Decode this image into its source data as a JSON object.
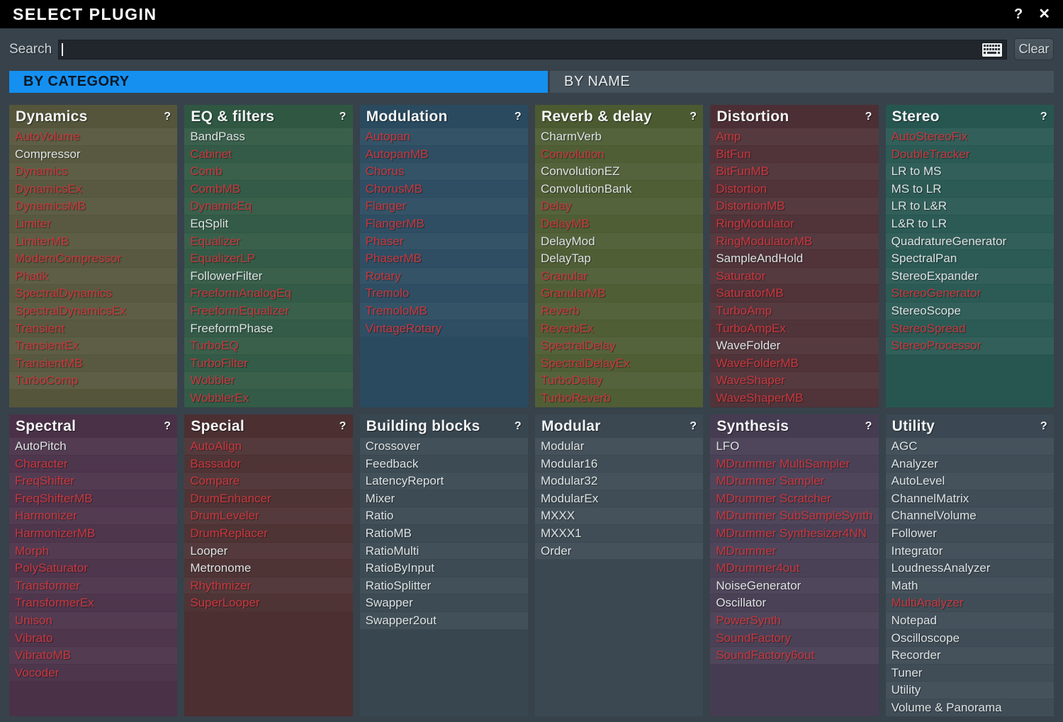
{
  "titlebar": {
    "title": "SELECT PLUGIN",
    "help_icon": "?",
    "close_icon": "✕"
  },
  "search": {
    "label": "Search",
    "value": "",
    "clear_label": "Clear"
  },
  "tabs": [
    {
      "label": "BY CATEGORY",
      "active": true
    },
    {
      "label": "BY NAME",
      "active": false
    }
  ],
  "panel_help_icon": "?",
  "colors": {
    "titlebar_bg": "#000000",
    "dialog_bg": "#37424b",
    "active_tab_blue": "#1590f0",
    "inactive_tab_gray": "#46525b",
    "red_item_text": "#c8383e",
    "normal_item_text": "#dde2e3"
  },
  "categories": [
    {
      "name": "Dynamics",
      "color": "#54553b",
      "items": [
        {
          "label": "AutoVolume",
          "red": true
        },
        {
          "label": "Compressor",
          "red": false
        },
        {
          "label": "Dynamics",
          "red": true
        },
        {
          "label": "DynamicsEx",
          "red": true
        },
        {
          "label": "DynamicsMB",
          "red": true
        },
        {
          "label": "Limiter",
          "red": true
        },
        {
          "label": "LimiterMB",
          "red": true
        },
        {
          "label": "ModernCompressor",
          "red": true
        },
        {
          "label": "Phatik",
          "red": true
        },
        {
          "label": "SpectralDynamics",
          "red": true
        },
        {
          "label": "SpectralDynamicsEx",
          "red": true
        },
        {
          "label": "Transient",
          "red": true
        },
        {
          "label": "TransientEx",
          "red": true
        },
        {
          "label": "TransientMB",
          "red": true
        },
        {
          "label": "TurboComp",
          "red": true
        }
      ]
    },
    {
      "name": "EQ & filters",
      "color": "#2f5742",
      "items": [
        {
          "label": "BandPass",
          "red": false
        },
        {
          "label": "Cabinet",
          "red": true
        },
        {
          "label": "Comb",
          "red": true
        },
        {
          "label": "CombMB",
          "red": true
        },
        {
          "label": "DynamicEq",
          "red": true
        },
        {
          "label": "EqSplit",
          "red": false
        },
        {
          "label": "Equalizer",
          "red": true
        },
        {
          "label": "EqualizerLP",
          "red": true
        },
        {
          "label": "FollowerFilter",
          "red": false
        },
        {
          "label": "FreeformAnalogEq",
          "red": true
        },
        {
          "label": "FreeformEqualizer",
          "red": true
        },
        {
          "label": "FreeformPhase",
          "red": false
        },
        {
          "label": "TurboEQ",
          "red": true
        },
        {
          "label": "TurboFilter",
          "red": true
        },
        {
          "label": "Wobbler",
          "red": true
        },
        {
          "label": "WobblerEx",
          "red": true
        }
      ]
    },
    {
      "name": "Modulation",
      "color": "#2a4a5f",
      "items": [
        {
          "label": "Autopan",
          "red": true
        },
        {
          "label": "AutopanMB",
          "red": true
        },
        {
          "label": "Chorus",
          "red": true
        },
        {
          "label": "ChorusMB",
          "red": true
        },
        {
          "label": "Flanger",
          "red": true
        },
        {
          "label": "FlangerMB",
          "red": true
        },
        {
          "label": "Phaser",
          "red": true
        },
        {
          "label": "PhaserMB",
          "red": true
        },
        {
          "label": "Rotary",
          "red": true
        },
        {
          "label": "Tremolo",
          "red": true
        },
        {
          "label": "TremoloMB",
          "red": true
        },
        {
          "label": "VintageRotary",
          "red": true
        }
      ]
    },
    {
      "name": "Reverb & delay",
      "color": "#4c5a31",
      "items": [
        {
          "label": "CharmVerb",
          "red": false
        },
        {
          "label": "Convolution",
          "red": true
        },
        {
          "label": "ConvolutionEZ",
          "red": false
        },
        {
          "label": "ConvolutionBank",
          "red": false
        },
        {
          "label": "Delay",
          "red": true
        },
        {
          "label": "DelayMB",
          "red": true
        },
        {
          "label": "DelayMod",
          "red": false
        },
        {
          "label": "DelayTap",
          "red": false
        },
        {
          "label": "Granular",
          "red": true
        },
        {
          "label": "GranularMB",
          "red": true
        },
        {
          "label": "Reverb",
          "red": true
        },
        {
          "label": "ReverbEx",
          "red": true
        },
        {
          "label": "SpectralDelay",
          "red": true
        },
        {
          "label": "SpectralDelayEx",
          "red": true
        },
        {
          "label": "TurboDelay",
          "red": true
        },
        {
          "label": "TurboReverb",
          "red": true
        }
      ]
    },
    {
      "name": "Distortion",
      "color": "#4c2f35",
      "items": [
        {
          "label": "Amp",
          "red": true
        },
        {
          "label": "BitFun",
          "red": true
        },
        {
          "label": "BitFunMB",
          "red": true
        },
        {
          "label": "Distortion",
          "red": true
        },
        {
          "label": "DistortionMB",
          "red": true
        },
        {
          "label": "RingModulator",
          "red": true
        },
        {
          "label": "RingModulatorMB",
          "red": true
        },
        {
          "label": "SampleAndHold",
          "red": false
        },
        {
          "label": "Saturator",
          "red": true
        },
        {
          "label": "SaturatorMB",
          "red": true
        },
        {
          "label": "TurboAmp",
          "red": true
        },
        {
          "label": "TurboAmpEx",
          "red": true
        },
        {
          "label": "WaveFolder",
          "red": false
        },
        {
          "label": "WaveFolderMB",
          "red": true
        },
        {
          "label": "WaveShaper",
          "red": true
        },
        {
          "label": "WaveShaperMB",
          "red": true
        }
      ]
    },
    {
      "name": "Stereo",
      "color": "#275651",
      "items": [
        {
          "label": "AutoStereoFix",
          "red": true
        },
        {
          "label": "DoubleTracker",
          "red": true
        },
        {
          "label": "LR to MS",
          "red": false
        },
        {
          "label": "MS to LR",
          "red": false
        },
        {
          "label": "LR to L&R",
          "red": false
        },
        {
          "label": "L&R to LR",
          "red": false
        },
        {
          "label": "QuadratureGenerator",
          "red": false
        },
        {
          "label": "SpectralPan",
          "red": false
        },
        {
          "label": "StereoExpander",
          "red": false
        },
        {
          "label": "StereoGenerator",
          "red": true
        },
        {
          "label": "StereoScope",
          "red": false
        },
        {
          "label": "StereoSpread",
          "red": true
        },
        {
          "label": "StereoProcessor",
          "red": true
        }
      ]
    },
    {
      "name": "Spectral",
      "color": "#4a3148",
      "items": [
        {
          "label": "AutoPitch",
          "red": false
        },
        {
          "label": "Character",
          "red": true
        },
        {
          "label": "FreqShifter",
          "red": true
        },
        {
          "label": "FreqShifterMB",
          "red": true
        },
        {
          "label": "Harmonizer",
          "red": true
        },
        {
          "label": "HarmonizerMB",
          "red": true
        },
        {
          "label": "Morph",
          "red": true
        },
        {
          "label": "PolySaturator",
          "red": true
        },
        {
          "label": "Transformer",
          "red": true
        },
        {
          "label": "TransformerEx",
          "red": true
        },
        {
          "label": "Unison",
          "red": true
        },
        {
          "label": "Vibrato",
          "red": true
        },
        {
          "label": "VibratoMB",
          "red": true
        },
        {
          "label": "Vocoder",
          "red": true
        }
      ]
    },
    {
      "name": "Special",
      "color": "#4b2f31",
      "items": [
        {
          "label": "AutoAlign",
          "red": true
        },
        {
          "label": "Bassador",
          "red": true
        },
        {
          "label": "Compare",
          "red": true
        },
        {
          "label": "DrumEnhancer",
          "red": true
        },
        {
          "label": "DrumLeveler",
          "red": true
        },
        {
          "label": "DrumReplacer",
          "red": true
        },
        {
          "label": "Looper",
          "red": false
        },
        {
          "label": "Metronome",
          "red": false
        },
        {
          "label": "Rhythmizer",
          "red": true
        },
        {
          "label": "SuperLooper",
          "red": true
        }
      ]
    },
    {
      "name": "Building blocks",
      "color": "#384650",
      "items": [
        {
          "label": "Crossover",
          "red": false
        },
        {
          "label": "Feedback",
          "red": false
        },
        {
          "label": "LatencyReport",
          "red": false
        },
        {
          "label": "Mixer",
          "red": false
        },
        {
          "label": "Ratio",
          "red": false
        },
        {
          "label": "RatioMB",
          "red": false
        },
        {
          "label": "RatioMulti",
          "red": false
        },
        {
          "label": "RatioByInput",
          "red": false
        },
        {
          "label": "RatioSplitter",
          "red": false
        },
        {
          "label": "Swapper",
          "red": false
        },
        {
          "label": "Swapper2out",
          "red": false
        }
      ]
    },
    {
      "name": "Modular",
      "color": "#3b4852",
      "items": [
        {
          "label": "Modular",
          "red": false
        },
        {
          "label": "Modular16",
          "red": false
        },
        {
          "label": "Modular32",
          "red": false
        },
        {
          "label": "ModularEx",
          "red": false
        },
        {
          "label": "MXXX",
          "red": false
        },
        {
          "label": "MXXX1",
          "red": false
        },
        {
          "label": "Order",
          "red": false
        }
      ]
    },
    {
      "name": "Synthesis",
      "color": "#463c52",
      "items": [
        {
          "label": "LFO",
          "red": false
        },
        {
          "label": "MDrummer MultiSampler",
          "red": true
        },
        {
          "label": "MDrummer Sampler",
          "red": true
        },
        {
          "label": "MDrummer Scratcher",
          "red": true
        },
        {
          "label": "MDrummer SubSampleSynth",
          "red": true
        },
        {
          "label": "MDrummer Synthesizer4NN",
          "red": true
        },
        {
          "label": "MDrummer",
          "red": true
        },
        {
          "label": "MDrummer4out",
          "red": true
        },
        {
          "label": "NoiseGenerator",
          "red": false
        },
        {
          "label": "Oscillator",
          "red": false
        },
        {
          "label": "PowerSynth",
          "red": true
        },
        {
          "label": "SoundFactory",
          "red": true
        },
        {
          "label": "SoundFactory6out",
          "red": true
        }
      ]
    },
    {
      "name": "Utility",
      "color": "#3b4853",
      "items": [
        {
          "label": "AGC",
          "red": false
        },
        {
          "label": "Analyzer",
          "red": false
        },
        {
          "label": "AutoLevel",
          "red": false
        },
        {
          "label": "ChannelMatrix",
          "red": false
        },
        {
          "label": "ChannelVolume",
          "red": false
        },
        {
          "label": "Follower",
          "red": false
        },
        {
          "label": "Integrator",
          "red": false
        },
        {
          "label": "LoudnessAnalyzer",
          "red": false
        },
        {
          "label": "Math",
          "red": false
        },
        {
          "label": "MultiAnalyzer",
          "red": true
        },
        {
          "label": "Notepad",
          "red": false
        },
        {
          "label": "Oscilloscope",
          "red": false
        },
        {
          "label": "Recorder",
          "red": false
        },
        {
          "label": "Tuner",
          "red": false
        },
        {
          "label": "Utility",
          "red": false
        },
        {
          "label": "Volume & Panorama",
          "red": false
        }
      ]
    }
  ]
}
